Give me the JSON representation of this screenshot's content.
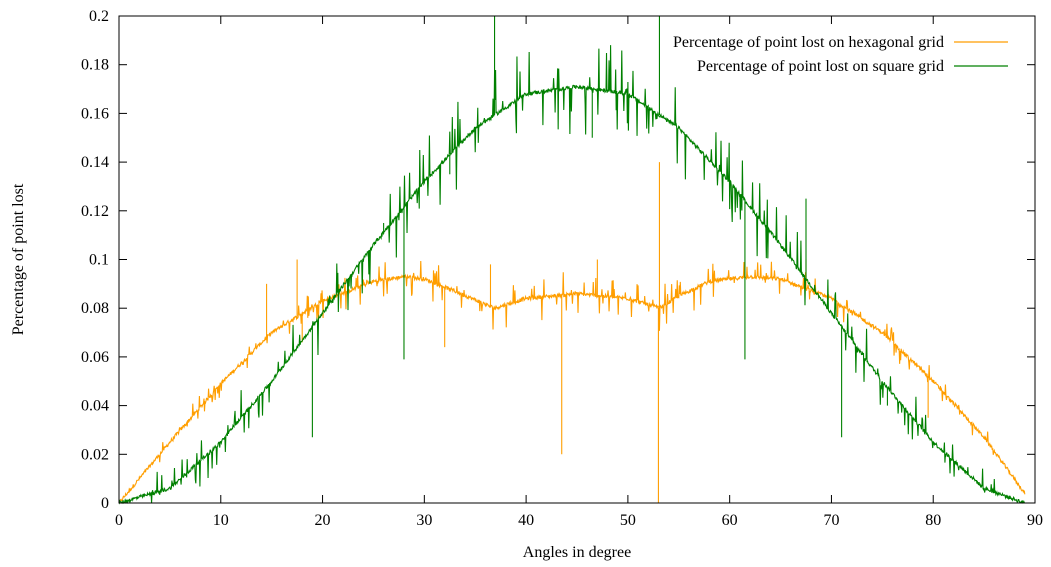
{
  "chart_data": {
    "type": "line",
    "title": "",
    "xlabel": "Angles in degree",
    "ylabel": "Percentage of point lost",
    "xlim": [
      0,
      90
    ],
    "ylim": [
      0,
      0.2
    ],
    "x_ticks": [
      0,
      10,
      20,
      30,
      40,
      50,
      60,
      70,
      80,
      90
    ],
    "x_tick_labels": [
      "0",
      "10",
      "20",
      "30",
      "40",
      "50",
      "60",
      "70",
      "80",
      "90"
    ],
    "y_ticks": [
      0,
      0.02,
      0.04,
      0.06,
      0.08,
      0.1,
      0.12,
      0.14,
      0.16,
      0.18,
      0.2
    ],
    "y_tick_labels": [
      "0",
      "0.02",
      "0.04",
      "0.06",
      "0.08",
      "0.1",
      "0.12",
      "0.14",
      "0.16",
      "0.18",
      "0.2"
    ],
    "grid": false,
    "legend_position": "top-right",
    "series": [
      {
        "name": "Percentage of point lost on hexagonal grid",
        "color": "#ff9e00",
        "x": [
          0,
          5,
          10,
          15,
          20,
          25,
          28,
          30,
          33,
          36.9,
          40,
          45,
          50,
          53.1,
          55,
          58,
          62,
          65,
          70,
          75,
          80,
          85,
          89
        ],
        "y": [
          0,
          0.025,
          0.049,
          0.07,
          0.083,
          0.091,
          0.093,
          0.092,
          0.087,
          0.08,
          0.084,
          0.086,
          0.084,
          0.08,
          0.085,
          0.091,
          0.093,
          0.092,
          0.084,
          0.07,
          0.05,
          0.027,
          0.004
        ],
        "spikes": [
          {
            "x": 14.5,
            "y": 0.09
          },
          {
            "x": 17.5,
            "y": 0.1
          },
          {
            "x": 18.0,
            "y": 0.066
          },
          {
            "x": 32.0,
            "y": 0.064
          },
          {
            "x": 36.5,
            "y": 0.098
          },
          {
            "x": 43.5,
            "y": 0.02
          },
          {
            "x": 47.0,
            "y": 0.1
          },
          {
            "x": 53.0,
            "y": 0.0
          },
          {
            "x": 53.1,
            "y": 0.14
          },
          {
            "x": 67.5,
            "y": 0.1
          },
          {
            "x": 79.5,
            "y": 0.035
          }
        ]
      },
      {
        "name": "Percentage of point lost on square grid",
        "color": "#008000",
        "x": [
          0,
          5,
          10,
          15,
          20,
          25,
          30,
          35,
          40,
          45,
          50,
          55,
          60,
          65,
          70,
          75,
          80,
          85,
          89
        ],
        "y": [
          0,
          0.006,
          0.025,
          0.05,
          0.078,
          0.106,
          0.132,
          0.154,
          0.168,
          0.171,
          0.168,
          0.154,
          0.132,
          0.106,
          0.078,
          0.05,
          0.025,
          0.006,
          0.0
        ],
        "spikes": [
          {
            "x": 19.0,
            "y": 0.027
          },
          {
            "x": 26.0,
            "y": 0.115
          },
          {
            "x": 28.0,
            "y": 0.059
          },
          {
            "x": 32.5,
            "y": 0.135
          },
          {
            "x": 36.9,
            "y": 0.2
          },
          {
            "x": 46.5,
            "y": 0.15
          },
          {
            "x": 53.1,
            "y": 0.2
          },
          {
            "x": 61.5,
            "y": 0.059
          },
          {
            "x": 67.5,
            "y": 0.125
          },
          {
            "x": 71.0,
            "y": 0.027
          },
          {
            "x": 75.5,
            "y": 0.04
          }
        ]
      }
    ]
  }
}
